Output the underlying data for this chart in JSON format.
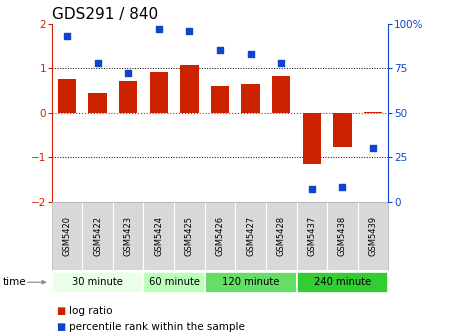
{
  "title": "GDS291 / 840",
  "samples": [
    "GSM5420",
    "GSM5422",
    "GSM5423",
    "GSM5424",
    "GSM5425",
    "GSM5426",
    "GSM5427",
    "GSM5428",
    "GSM5437",
    "GSM5438",
    "GSM5439"
  ],
  "log_ratio": [
    0.75,
    0.45,
    0.72,
    0.9,
    1.07,
    0.6,
    0.65,
    0.82,
    -1.15,
    -0.78,
    0.02
  ],
  "percentile": [
    93,
    78,
    72,
    97,
    96,
    85,
    83,
    78,
    7,
    8,
    30
  ],
  "bar_color": "#cc2200",
  "dot_color": "#1144cc",
  "groups": [
    {
      "label": "30 minute",
      "start": 0,
      "end": 3,
      "color": "#e8ffe8"
    },
    {
      "label": "60 minute",
      "start": 3,
      "end": 5,
      "color": "#bbffbb"
    },
    {
      "label": "120 minute",
      "start": 5,
      "end": 8,
      "color": "#66dd66"
    },
    {
      "label": "240 minute",
      "start": 8,
      "end": 11,
      "color": "#33cc33"
    }
  ],
  "ylim_left": [
    -2,
    2
  ],
  "ylim_right": [
    0,
    100
  ],
  "yticks_left": [
    -2,
    -1,
    0,
    1,
    2
  ],
  "yticks_right": [
    0,
    25,
    50,
    75,
    100
  ],
  "legend_labels": [
    "log ratio",
    "percentile rank within the sample"
  ],
  "background_color": "#ffffff",
  "tick_label_fontsize": 7.5,
  "title_fontsize": 11
}
